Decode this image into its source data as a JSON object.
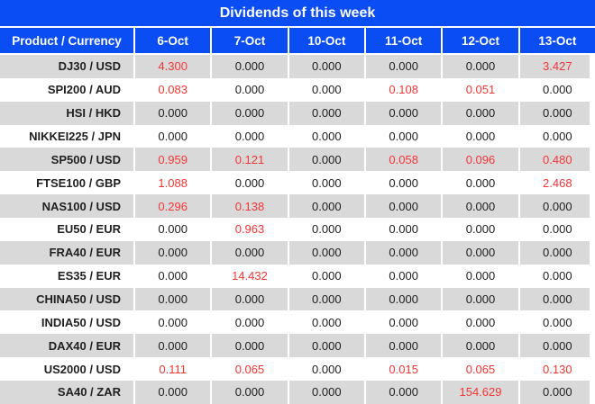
{
  "table": {
    "title": "Dividends of this week",
    "columns": [
      "Product / Currency",
      "6-Oct",
      "7-Oct",
      "10-Oct",
      "11-Oct",
      "12-Oct",
      "13-Oct"
    ],
    "rows": [
      {
        "product": "DJ30 / USD",
        "values": [
          "4.300",
          "0.000",
          "0.000",
          "0.000",
          "0.000",
          "3.427"
        ]
      },
      {
        "product": "SPI200 / AUD",
        "values": [
          "0.083",
          "0.000",
          "0.000",
          "0.108",
          "0.051",
          "0.000"
        ]
      },
      {
        "product": "HSI / HKD",
        "values": [
          "0.000",
          "0.000",
          "0.000",
          "0.000",
          "0.000",
          "0.000"
        ]
      },
      {
        "product": "NIKKEI225 / JPN",
        "values": [
          "0.000",
          "0.000",
          "0.000",
          "0.000",
          "0.000",
          "0.000"
        ]
      },
      {
        "product": "SP500 / USD",
        "values": [
          "0.959",
          "0.121",
          "0.000",
          "0.058",
          "0.096",
          "0.480"
        ]
      },
      {
        "product": "FTSE100 / GBP",
        "values": [
          "1.088",
          "0.000",
          "0.000",
          "0.000",
          "0.000",
          "2.468"
        ]
      },
      {
        "product": "NAS100 / USD",
        "values": [
          "0.296",
          "0.138",
          "0.000",
          "0.000",
          "0.000",
          "0.000"
        ]
      },
      {
        "product": "EU50 / EUR",
        "values": [
          "0.000",
          "0.963",
          "0.000",
          "0.000",
          "0.000",
          "0.000"
        ]
      },
      {
        "product": "FRA40 / EUR",
        "values": [
          "0.000",
          "0.000",
          "0.000",
          "0.000",
          "0.000",
          "0.000"
        ]
      },
      {
        "product": "ES35 / EUR",
        "values": [
          "0.000",
          "14.432",
          "0.000",
          "0.000",
          "0.000",
          "0.000"
        ]
      },
      {
        "product": "CHINA50 / USD",
        "values": [
          "0.000",
          "0.000",
          "0.000",
          "0.000",
          "0.000",
          "0.000"
        ]
      },
      {
        "product": "INDIA50 / USD",
        "values": [
          "0.000",
          "0.000",
          "0.000",
          "0.000",
          "0.000",
          "0.000"
        ]
      },
      {
        "product": "DAX40 / EUR",
        "values": [
          "0.000",
          "0.000",
          "0.000",
          "0.000",
          "0.000",
          "0.000"
        ]
      },
      {
        "product": "US2000 / USD",
        "values": [
          "0.111",
          "0.065",
          "0.000",
          "0.015",
          "0.065",
          "0.130"
        ]
      },
      {
        "product": "SA40 / ZAR",
        "values": [
          "0.000",
          "0.000",
          "0.000",
          "0.000",
          "154.629",
          "0.000"
        ]
      }
    ]
  },
  "colors": {
    "header_blue": "#0A4DF3",
    "row_gray": "#D9D9D9",
    "row_white": "#FFFFFF",
    "header_text": "#FFFFFF",
    "value_black": "#202020",
    "value_red_nonzero": "#F93636"
  },
  "chart_data": {
    "type": "table",
    "title": "Dividends of this week",
    "columns": [
      "Product / Currency",
      "6-Oct",
      "7-Oct",
      "10-Oct",
      "11-Oct",
      "12-Oct",
      "13-Oct"
    ],
    "rows": [
      [
        "DJ30 / USD",
        4.3,
        0.0,
        0.0,
        0.0,
        0.0,
        3.427
      ],
      [
        "SPI200 / AUD",
        0.083,
        0.0,
        0.0,
        0.108,
        0.051,
        0.0
      ],
      [
        "HSI / HKD",
        0.0,
        0.0,
        0.0,
        0.0,
        0.0,
        0.0
      ],
      [
        "NIKKEI225 / JPN",
        0.0,
        0.0,
        0.0,
        0.0,
        0.0,
        0.0
      ],
      [
        "SP500 / USD",
        0.959,
        0.121,
        0.0,
        0.058,
        0.096,
        0.48
      ],
      [
        "FTSE100 / GBP",
        1.088,
        0.0,
        0.0,
        0.0,
        0.0,
        2.468
      ],
      [
        "NAS100 / USD",
        0.296,
        0.138,
        0.0,
        0.0,
        0.0,
        0.0
      ],
      [
        "EU50 / EUR",
        0.0,
        0.963,
        0.0,
        0.0,
        0.0,
        0.0
      ],
      [
        "FRA40 / EUR",
        0.0,
        0.0,
        0.0,
        0.0,
        0.0,
        0.0
      ],
      [
        "ES35 / EUR",
        0.0,
        14.432,
        0.0,
        0.0,
        0.0,
        0.0
      ],
      [
        "CHINA50 / USD",
        0.0,
        0.0,
        0.0,
        0.0,
        0.0,
        0.0
      ],
      [
        "INDIA50 / USD",
        0.0,
        0.0,
        0.0,
        0.0,
        0.0,
        0.0
      ],
      [
        "DAX40 / EUR",
        0.0,
        0.0,
        0.0,
        0.0,
        0.0,
        0.0
      ],
      [
        "US2000 / USD",
        0.111,
        0.065,
        0.0,
        0.015,
        0.065,
        0.13
      ],
      [
        "SA40 / ZAR",
        0.0,
        0.0,
        0.0,
        0.0,
        154.629,
        0.0
      ]
    ],
    "style_note": "non-zero values rendered in red, zeros in black; alternating gray/white rows"
  }
}
